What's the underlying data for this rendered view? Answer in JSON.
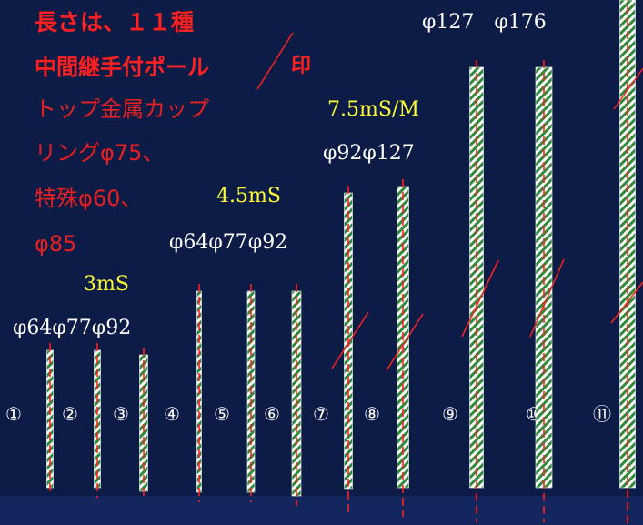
{
  "notes": {
    "line1": "長さは、１１種",
    "line2": "中間継手付ポール",
    "line2_mark": "印",
    "line3": "トップ金属カップ",
    "line4": "リングφ75、",
    "line5": "特殊φ60、",
    "line6": "φ85"
  },
  "groups": [
    {
      "length_label": "3mS",
      "diameters_label": "φ64φ77φ92"
    },
    {
      "length_label": "4.5mS",
      "diameters_label": "φ64φ77φ92"
    },
    {
      "length_label": "7.5mS/M",
      "diameters_label": "φ92φ127"
    },
    {
      "length_label": "",
      "diameters_label": "φ127　φ176"
    }
  ],
  "poles": [
    {
      "number": "①",
      "diameter": "φ64",
      "length": "3mS",
      "joint": false
    },
    {
      "number": "②",
      "diameter": "φ77",
      "length": "3mS",
      "joint": false
    },
    {
      "number": "③",
      "diameter": "φ92",
      "length": "3mS",
      "joint": false
    },
    {
      "number": "④",
      "diameter": "φ64",
      "length": "4.5mS",
      "joint": false
    },
    {
      "number": "⑤",
      "diameter": "φ77",
      "length": "4.5mS",
      "joint": false
    },
    {
      "number": "⑥",
      "diameter": "φ92",
      "length": "4.5mS",
      "joint": false
    },
    {
      "number": "⑦",
      "diameter": "φ92",
      "length": "7.5mS/M",
      "joint": true
    },
    {
      "number": "⑧",
      "diameter": "φ127",
      "length": "7.5mS/M",
      "joint": true
    },
    {
      "number": "⑨",
      "diameter": "φ127",
      "length": "",
      "joint": true
    },
    {
      "number": "⑩",
      "diameter": "φ176",
      "length": "",
      "joint": true
    },
    {
      "number": "⑪",
      "diameter": "",
      "length": "",
      "joint": true
    }
  ],
  "colors": {
    "background": "#0d1b47",
    "pole_stripe_green": "#2e8b3a",
    "pole_stripe_white": "#ffffff",
    "axis_line": "#ff2020",
    "joint_mark": "#ff2020"
  }
}
